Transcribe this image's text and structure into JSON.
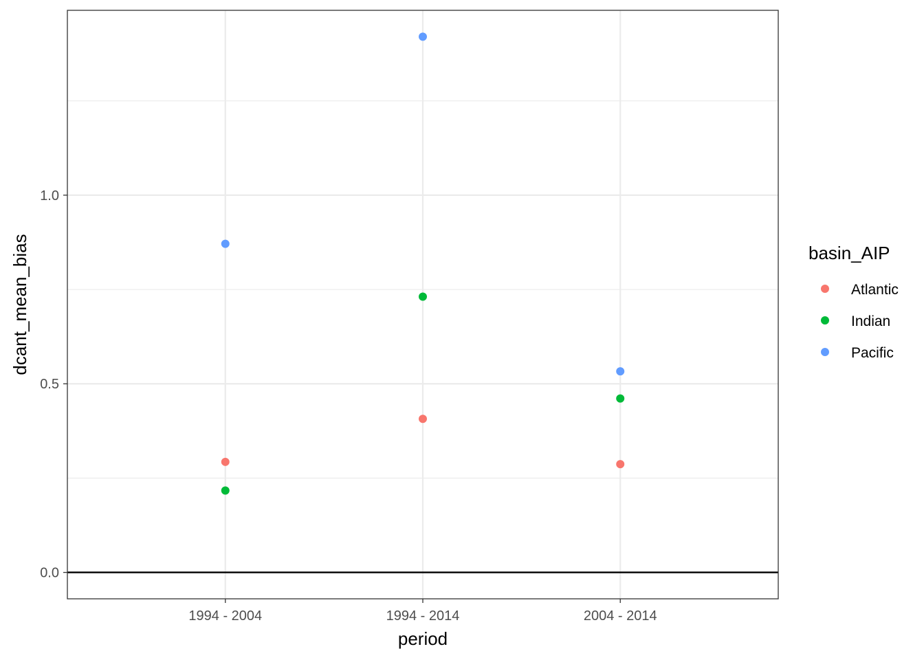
{
  "chart_data": {
    "type": "scatter",
    "xlabel": "period",
    "ylabel": "dcant_mean_bias",
    "categories": [
      "1994 - 2004",
      "1994 - 2014",
      "2004 - 2014"
    ],
    "ylim": [
      -0.07,
      1.49
    ],
    "y_ticks": [
      "0.0",
      "0.5",
      "1.0"
    ],
    "y_tick_values": [
      0.0,
      0.5,
      1.0
    ],
    "y_minor_grid": [
      0.25,
      0.75,
      1.25
    ],
    "hline": 0,
    "grid": true,
    "legend_position": "right",
    "legend_title": "basin_AIP",
    "series": [
      {
        "name": "Atlantic",
        "color": "#F8766D",
        "values": [
          0.293,
          0.407,
          0.287
        ]
      },
      {
        "name": "Indian",
        "color": "#00BA38",
        "values": [
          0.217,
          0.731,
          0.461
        ]
      },
      {
        "name": "Pacific",
        "color": "#619CFF",
        "values": [
          0.871,
          1.42,
          0.533
        ]
      }
    ]
  }
}
